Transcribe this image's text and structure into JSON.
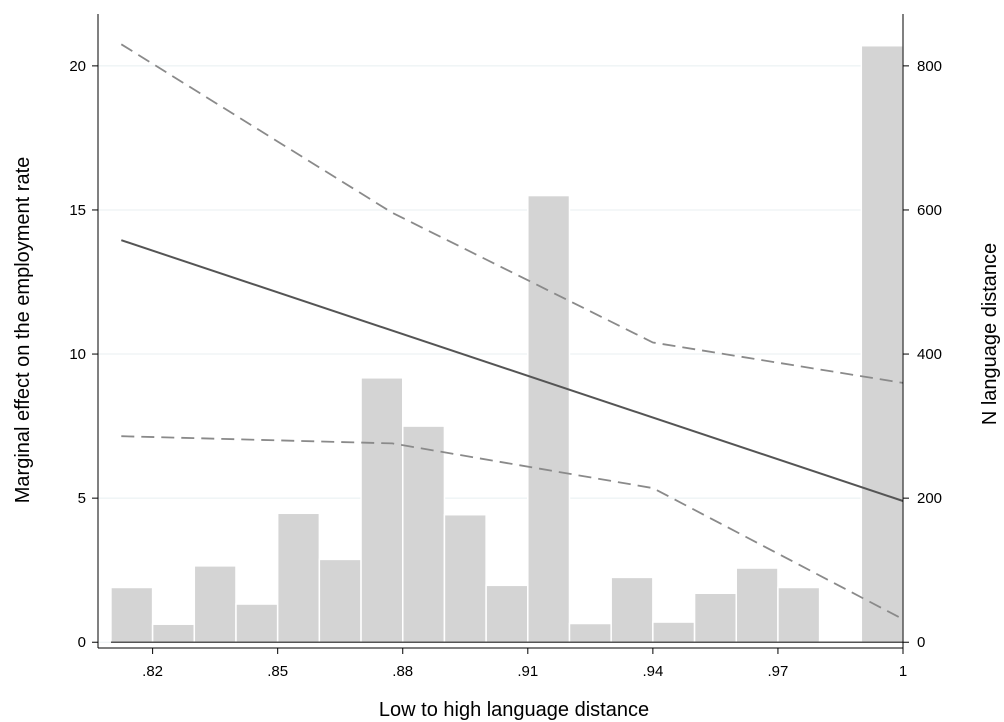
{
  "chart_data": {
    "type": "bar+line",
    "xlabel": "Low to high language distance",
    "ylabel_left": "Marginal effect on the employment rate",
    "ylabel_right": "N language distance",
    "x_ticks": [
      ".82",
      ".85",
      ".88",
      ".91",
      ".94",
      ".97",
      "1"
    ],
    "x_tick_values": [
      0.82,
      0.85,
      0.88,
      0.91,
      0.94,
      0.97,
      1.0
    ],
    "y_left_ticks": [
      "0",
      "5",
      "10",
      "15",
      "20"
    ],
    "y_left_tick_values": [
      0,
      5,
      10,
      15,
      20
    ],
    "y_right_ticks": [
      "0",
      "200",
      "400",
      "600",
      "800"
    ],
    "y_right_tick_values": [
      0,
      200,
      400,
      600,
      800
    ],
    "xlim": [
      0.8069,
      1.0
    ],
    "ylim_left": [
      -0.2,
      21.8
    ],
    "ylim_right": [
      -8,
      872
    ],
    "grid": true,
    "histogram": {
      "name": "N language distance",
      "axis": "right",
      "color": "#d4d4d4",
      "bin_width": 0.01,
      "bin_starts": [
        0.81,
        0.82,
        0.83,
        0.84,
        0.85,
        0.86,
        0.87,
        0.88,
        0.89,
        0.9,
        0.91,
        0.92,
        0.93,
        0.94,
        0.95,
        0.96,
        0.97,
        0.98,
        0.99
      ],
      "counts": [
        76,
        25,
        106,
        53,
        179,
        115,
        367,
        300,
        177,
        79,
        620,
        26,
        90,
        28,
        68,
        103,
        76,
        2,
        828
      ]
    },
    "series": [
      {
        "role": "marginal-effect",
        "axis": "left",
        "style": "solid",
        "color": "#555555",
        "x": [
          0.8125,
          1.0
        ],
        "y": [
          13.95,
          4.9
        ]
      },
      {
        "role": "upper-ci",
        "axis": "left",
        "style": "dashed",
        "color": "#8a8a8a",
        "x": [
          0.8125,
          0.8775,
          0.94,
          1.0
        ],
        "y": [
          20.75,
          14.9,
          10.4,
          9.0
        ]
      },
      {
        "role": "lower-ci",
        "axis": "left",
        "style": "dashed",
        "color": "#8a8a8a",
        "x": [
          0.8125,
          0.8775,
          0.94,
          1.0
        ],
        "y": [
          7.15,
          6.9,
          5.35,
          0.8
        ]
      }
    ]
  }
}
